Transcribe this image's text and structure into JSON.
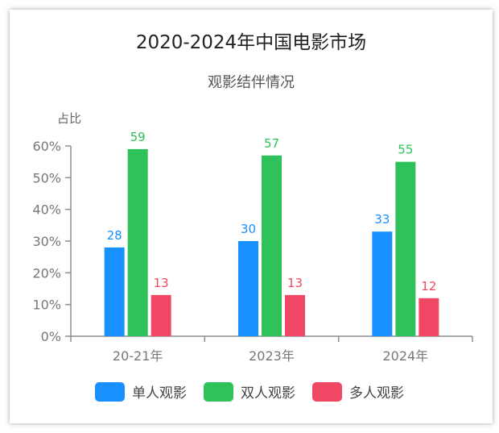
{
  "chart_data": {
    "type": "bar",
    "title": "2020-2024年中国电影市场",
    "subtitle": "观影结伴情况",
    "ylabel": "占比",
    "xlabel": "",
    "categories": [
      "20-21年",
      "2023年",
      "2024年"
    ],
    "series": [
      {
        "name": "单人观影",
        "values": [
          28,
          30,
          33
        ],
        "color": "#1890ff"
      },
      {
        "name": "双人观影",
        "values": [
          59,
          57,
          55
        ],
        "color": "#2fc25b"
      },
      {
        "name": "多人观影",
        "values": [
          13,
          13,
          12
        ],
        "color": "#f04864"
      }
    ],
    "ylim": [
      0,
      60
    ],
    "yticks": [
      "0%",
      "10%",
      "20%",
      "30%",
      "40%",
      "50%",
      "60%"
    ],
    "grid": false,
    "legend": "bottom"
  }
}
